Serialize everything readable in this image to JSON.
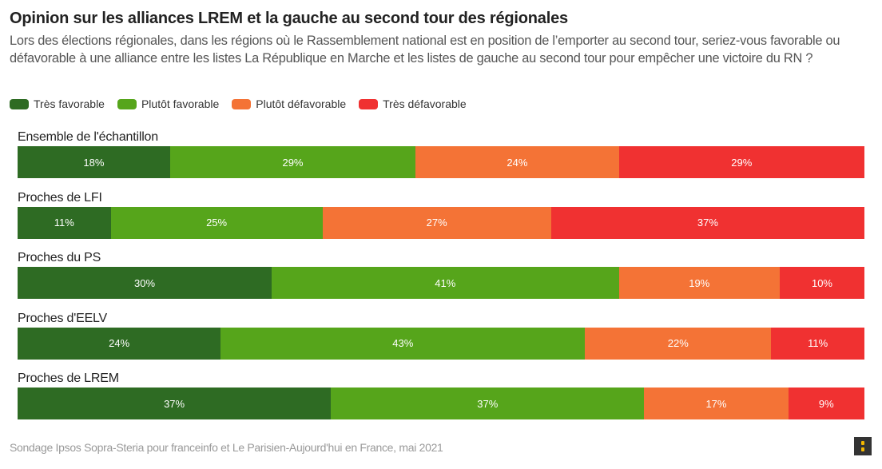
{
  "title": "Opinion sur les alliances LREM et la gauche au second tour des régionales",
  "subtitle": "Lors des élections régionales, dans les régions où le Rassemblement national est en position de l’emporter au second tour, seriez-vous favorable ou défavorable à une alliance entre les listes La République en Marche et les listes de gauche au second tour pour empêcher une victoire du RN ?",
  "footer": "Sondage Ipsos Sopra-Steria pour franceinfo et Le Parisien-Aujourd'hui en France, mai 2021",
  "logo_icon": "brand-logo-icon",
  "colors": {
    "tres_favorable": "#2e6b23",
    "plutot_favorable": "#56a51b",
    "plutot_defavorable": "#f47336",
    "tres_defavorable": "#f03131"
  },
  "chart_data": {
    "type": "bar",
    "orientation": "horizontal",
    "stacked": true,
    "normalized": true,
    "title": "Opinion sur les alliances LREM et la gauche au second tour des régionales",
    "xlabel": "",
    "ylabel": "",
    "xlim": [
      0,
      100
    ],
    "grid": false,
    "legend_position": "top-left",
    "value_suffix": "%",
    "categories": [
      "Ensemble de l'échantillon",
      "Proches de LFI",
      "Proches du PS",
      "Proches d'EELV",
      "Proches de LREM"
    ],
    "series": [
      {
        "name": "Très favorable",
        "color": "#2e6b23",
        "values": [
          18,
          11,
          30,
          24,
          37
        ]
      },
      {
        "name": "Plutôt favorable",
        "color": "#56a51b",
        "values": [
          29,
          25,
          41,
          43,
          37
        ]
      },
      {
        "name": "Plutôt défavorable",
        "color": "#f47336",
        "values": [
          24,
          27,
          19,
          22,
          17
        ]
      },
      {
        "name": "Très défavorable",
        "color": "#f03131",
        "values": [
          29,
          37,
          10,
          11,
          9
        ]
      }
    ]
  }
}
